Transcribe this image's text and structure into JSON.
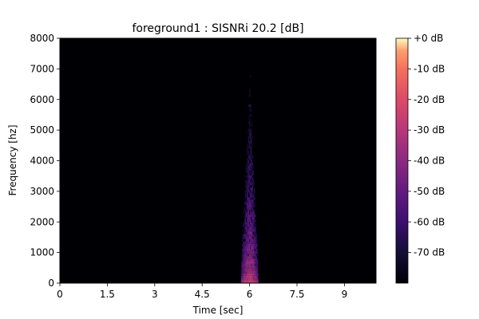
{
  "chart_data": {
    "type": "heatmap",
    "title": "foreground1 : SISNRi 20.2 [dB]",
    "xlabel": "Time [sec]",
    "ylabel": "Frequency [hz]",
    "xlim": [
      0,
      10
    ],
    "ylim": [
      0,
      8000
    ],
    "x_ticks": [
      {
        "value": 0,
        "label": "0"
      },
      {
        "value": 1.5,
        "label": "1.5"
      },
      {
        "value": 3,
        "label": "3"
      },
      {
        "value": 4.5,
        "label": "4.5"
      },
      {
        "value": 6,
        "label": "6"
      },
      {
        "value": 7.5,
        "label": "7.5"
      },
      {
        "value": 9,
        "label": "9"
      }
    ],
    "y_ticks": [
      {
        "value": 0,
        "label": "0"
      },
      {
        "value": 1000,
        "label": "1000"
      },
      {
        "value": 2000,
        "label": "2000"
      },
      {
        "value": 3000,
        "label": "3000"
      },
      {
        "value": 4000,
        "label": "4000"
      },
      {
        "value": 5000,
        "label": "5000"
      },
      {
        "value": 6000,
        "label": "6000"
      },
      {
        "value": 7000,
        "label": "7000"
      },
      {
        "value": 8000,
        "label": "8000"
      }
    ],
    "colormap": "magma",
    "colorbar": {
      "range_db": [
        -80,
        0
      ],
      "ticks": [
        {
          "value": 0,
          "label": "+0 dB"
        },
        {
          "value": -10,
          "label": "-10 dB"
        },
        {
          "value": -20,
          "label": "-20 dB"
        },
        {
          "value": -30,
          "label": "-30 dB"
        },
        {
          "value": -40,
          "label": "-40 dB"
        },
        {
          "value": -50,
          "label": "-50 dB"
        },
        {
          "value": -60,
          "label": "-60 dB"
        },
        {
          "value": -70,
          "label": "-70 dB"
        }
      ]
    },
    "energy_event": {
      "time_start_sec": 5.8,
      "time_end_sec": 6.3,
      "peak_time_sec": 6.0,
      "max_frequency_hz": 7000,
      "peak_level_db": -15
    },
    "background_level_db": -80,
    "grid": false
  }
}
